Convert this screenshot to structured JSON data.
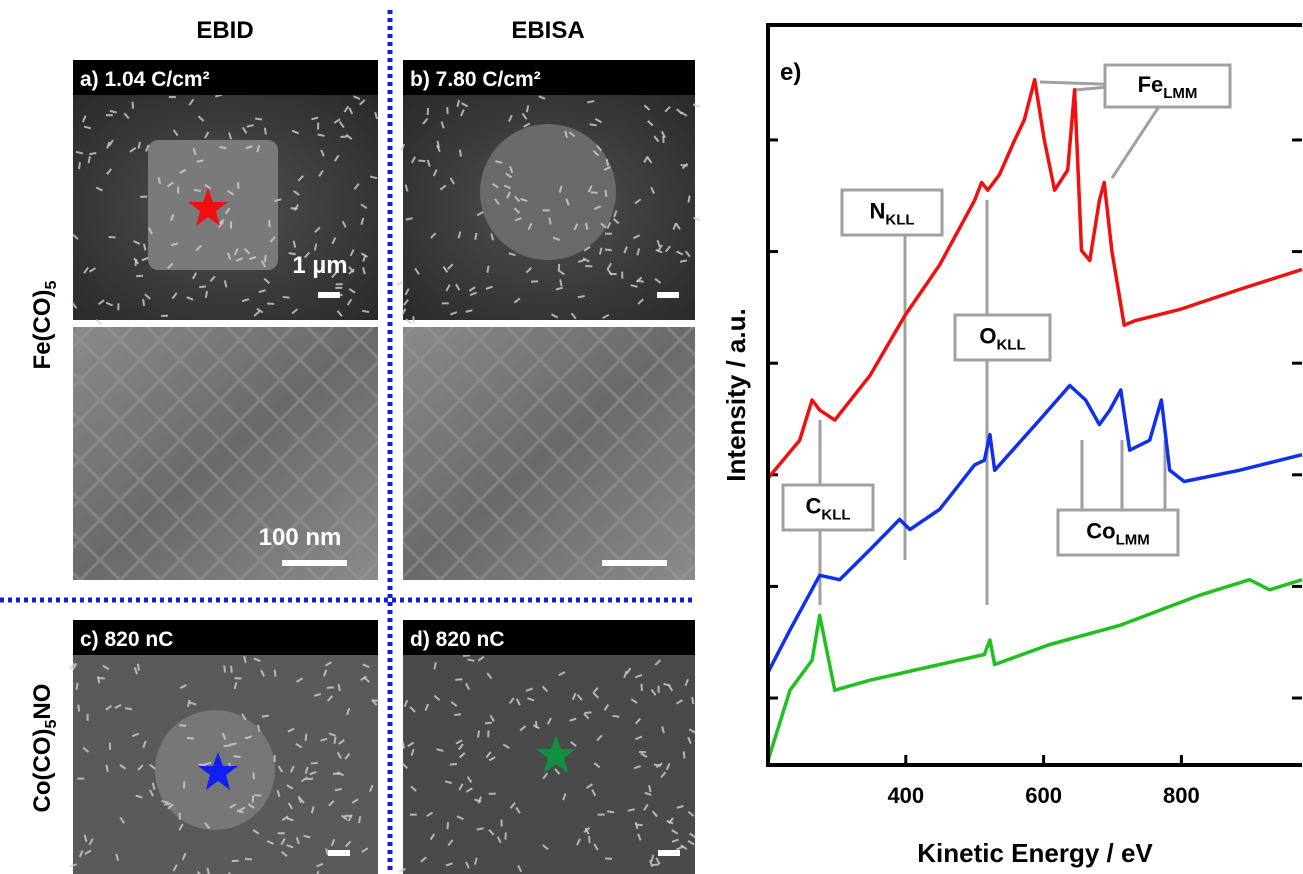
{
  "panels": {
    "column_titles": [
      "EBID",
      "EBISA"
    ],
    "row_labels": [
      {
        "text": "Fe(CO)",
        "sub": "5"
      },
      {
        "text": "Co(CO)",
        "sub": "5",
        "after": "NO"
      }
    ],
    "panel_labels": [
      "a) 1.04 C/cm²",
      "b) 7.80 C/cm²",
      "c) 820 nC",
      "d) 820 nC"
    ],
    "scale_labels": [
      "1 µm",
      "100 nm"
    ]
  },
  "chart_data": {
    "type": "line",
    "panel_label": "e)",
    "x_label": "Kinetic Energy / eV",
    "y_label": "Intensity / a.u.",
    "xlim": [
      200,
      975
    ],
    "xticks": [
      400,
      600,
      800
    ],
    "ylim": [
      -0.6,
      6.03
    ],
    "yticks": [
      0,
      1,
      2,
      3,
      4,
      5
    ],
    "series": [
      {
        "color": "#f01010",
        "x": [
          200,
          246,
          264,
          275,
          297,
          348,
          399,
          449,
          500,
          510,
          519,
          536,
          558,
          572,
          587,
          601,
          616,
          635,
          645,
          655,
          667,
          681,
          688,
          699,
          717,
          732,
          797,
          884,
          975
        ],
        "values": [
          1.97,
          2.31,
          2.67,
          2.58,
          2.49,
          2.89,
          3.43,
          3.88,
          4.46,
          4.62,
          4.55,
          4.69,
          5.0,
          5.18,
          5.54,
          5.0,
          4.55,
          4.73,
          5.45,
          4.01,
          3.92,
          4.46,
          4.62,
          4.01,
          3.34,
          3.38,
          3.48,
          3.66,
          3.84
        ]
      },
      {
        "color": "#1030f0",
        "x": [
          200,
          232,
          275,
          304,
          348,
          391,
          406,
          449,
          500,
          514,
          522,
          529,
          594,
          638,
          661,
          681,
          696,
          712,
          725,
          754,
          771,
          783,
          804,
          884,
          975
        ],
        "values": [
          0.23,
          0.61,
          1.1,
          1.06,
          1.33,
          1.6,
          1.51,
          1.69,
          2.09,
          2.13,
          2.36,
          2.04,
          2.49,
          2.8,
          2.67,
          2.45,
          2.58,
          2.76,
          2.22,
          2.31,
          2.67,
          2.04,
          1.94,
          2.04,
          2.18
        ]
      },
      {
        "color": "#20c020",
        "x": [
          200,
          232,
          264,
          275,
          297,
          348,
          449,
          514,
          522,
          529,
          609,
          710,
          826,
          899,
          928,
          975
        ],
        "values": [
          -0.56,
          0.07,
          0.34,
          0.74,
          0.07,
          0.16,
          0.3,
          0.39,
          0.52,
          0.3,
          0.48,
          0.65,
          0.92,
          1.06,
          0.97,
          1.06
        ]
      }
    ],
    "annotations": [
      {
        "text": "Fe",
        "sub": "LMM"
      },
      {
        "text": "N",
        "sub": "KLL"
      },
      {
        "text": "O",
        "sub": "KLL"
      },
      {
        "text": "C",
        "sub": "KLL"
      },
      {
        "text": "Co",
        "sub": "LMM"
      }
    ]
  }
}
